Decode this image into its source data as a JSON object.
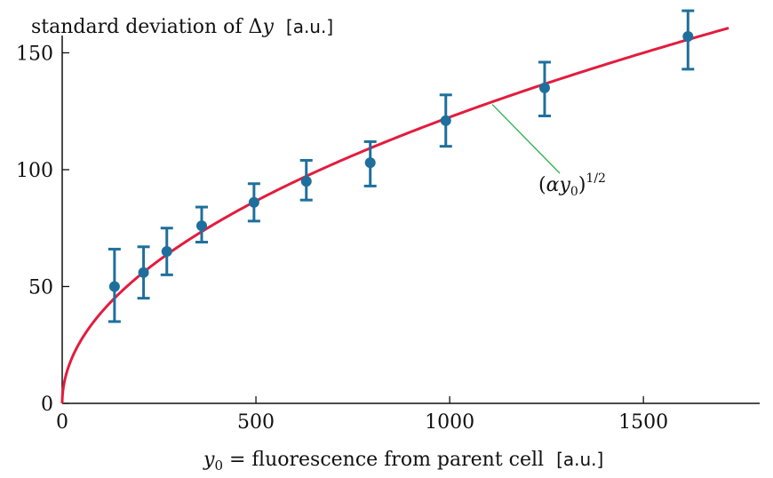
{
  "chart_data": {
    "type": "scatter",
    "title": "",
    "ylabel": {
      "prefix": "standard deviation of Δ",
      "var": "y",
      "unit": "[a.u.]"
    },
    "xlabel": {
      "var": "y",
      "sub": "0",
      "text": " = fluorescence from parent cell",
      "unit": "[a.u.]"
    },
    "xlim": [
      0,
      1800
    ],
    "ylim": [
      0,
      165
    ],
    "x_ticks": [
      0,
      500,
      1000,
      1500
    ],
    "y_ticks": [
      0,
      50,
      100,
      150
    ],
    "series": [
      {
        "kind": "errorbar",
        "color": "#1f6f9c",
        "x": [
          135,
          210,
          270,
          360,
          495,
          630,
          795,
          990,
          1245,
          1615
        ],
        "y": [
          50,
          56,
          65,
          76,
          86,
          95,
          103,
          121,
          135,
          157
        ],
        "yerr_low": [
          35,
          45,
          55,
          69,
          78,
          87,
          93,
          110,
          123,
          143
        ],
        "yerr_high": [
          66,
          67,
          75,
          84,
          94,
          104,
          112,
          132,
          146,
          168
        ]
      },
      {
        "kind": "line",
        "color": "#e31c3d",
        "function": "sqrt(alpha*y0)",
        "alpha": 15,
        "x_range": [
          0,
          1720
        ]
      }
    ],
    "annotation": {
      "text_open": "(",
      "alpha": "α",
      "var": "y",
      "sub": "0",
      "text_close": ")",
      "exponent": "1/2",
      "pointer_color": "#2bb24c",
      "target_x": 1110
    }
  }
}
